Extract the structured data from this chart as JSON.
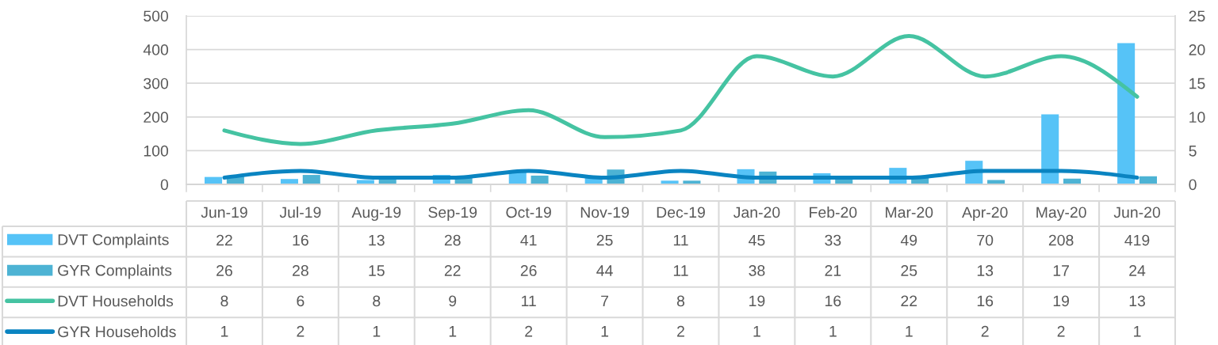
{
  "chart_data": {
    "type": "bar",
    "categories": [
      "Jun-19",
      "Jul-19",
      "Aug-19",
      "Sep-19",
      "Oct-19",
      "Nov-19",
      "Dec-19",
      "Jan-20",
      "Feb-20",
      "Mar-20",
      "Apr-20",
      "May-20",
      "Jun-20"
    ],
    "series": [
      {
        "name": "DVT Complaints",
        "color": "#56c3f7",
        "values": [
          22,
          16,
          13,
          28,
          41,
          25,
          11,
          45,
          33,
          49,
          70,
          208,
          419
        ]
      },
      {
        "name": "GYR Complaints",
        "color": "#4db3d4",
        "values": [
          26,
          28,
          15,
          22,
          26,
          44,
          11,
          38,
          21,
          25,
          13,
          17,
          24
        ]
      },
      {
        "name": "DVT Households",
        "type": "line",
        "axis": "y2",
        "color": "#45c3a2",
        "values": [
          8,
          6,
          8,
          9,
          11,
          7,
          8,
          19,
          16,
          22,
          16,
          19,
          13
        ]
      },
      {
        "name": "GYR Households",
        "type": "line",
        "axis": "y2",
        "color": "#0a84c1",
        "values": [
          1,
          2,
          1,
          1,
          2,
          1,
          2,
          1,
          1,
          1,
          2,
          2,
          1
        ]
      }
    ],
    "ylim": [
      0,
      500
    ],
    "yticks": [
      0,
      100,
      200,
      300,
      400,
      500
    ],
    "y2lim": [
      0,
      25
    ],
    "y2ticks": [
      0,
      5,
      10,
      15,
      20,
      25
    ],
    "grid": "y",
    "legend": "bottom left",
    "data_labels": true
  }
}
